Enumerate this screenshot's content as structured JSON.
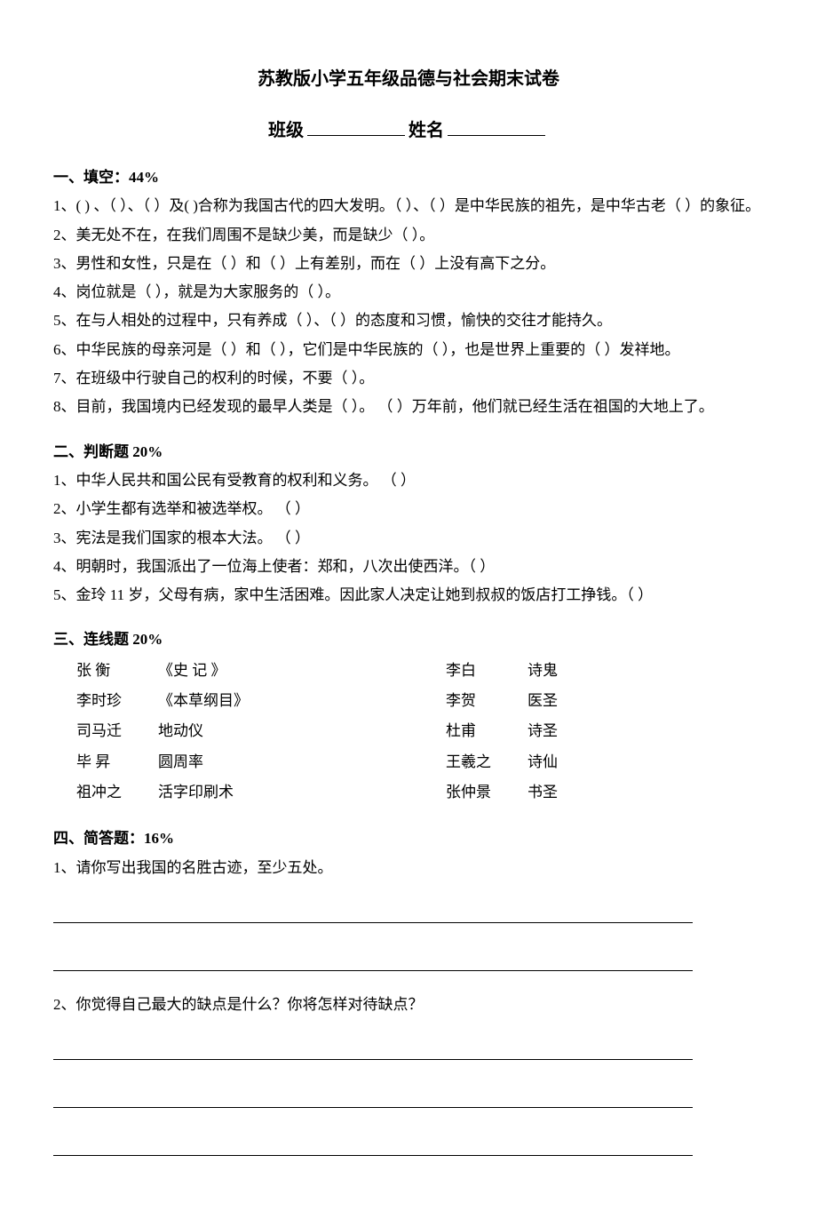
{
  "title": "苏教版小学五年级品德与社会期末试卷",
  "subtitle": {
    "class_label": "班级",
    "name_label": "姓名"
  },
  "s1": {
    "header": "一、填空：44%",
    "q1": "1、(        ) 、（        ）、（        ）及(        )合称为我国古代的四大发明。（        ）、（        ）是中华民族的祖先，是中华古老（      ）的象征。",
    "q2": "2、美无处不在，在我们周围不是缺少美，而是缺少（            ）。",
    "q3": "3、男性和女性，只是在（          ）和（          ）上有差别，而在（        ）上没有高下之分。",
    "q4": "4、岗位就是（        ），就是为大家服务的（        ）。",
    "q5": "5、在与人相处的过程中，只有养成（        ）、（        ）的态度和习惯，愉快的交往才能持久。",
    "q6": "6、中华民族的母亲河是（      ）和（      ），它们是中华民族的（                    ），也是世界上重要的（            ）发祥地。",
    "q7": "7、在班级中行驶自己的权利的时候，不要（                ）。",
    "q8": "8、目前，我国境内已经发现的最早人类是（            ）。  （        ）万年前，他们就已经生活在祖国的大地上了。"
  },
  "s2": {
    "header": "二、判断题 20%",
    "q1": "1、中华人民共和国公民有受教育的权利和义务。    （      ）",
    "q2": "2、小学生都有选举和被选举权。                      （      ）",
    "q3": "3、宪法是我们国家的根本大法。                      （      ）",
    "q4": "4、明朝时，我国派出了一位海上使者：郑和，八次出使西洋。（    ）",
    "q5": "5、金玲 11 岁，父母有病，家中生活困难。因此家人决定让她到叔叔的饭店打工挣钱。（        ）"
  },
  "s3": {
    "header": "三、连线题 20%",
    "left": [
      {
        "a": "张  衡",
        "b": "《史    记 》"
      },
      {
        "a": "李时珍",
        "b": "《本草纲目》"
      },
      {
        "a": "司马迁",
        "b": "地动仪"
      },
      {
        "a": "毕  昇",
        "b": "圆周率"
      },
      {
        "a": "祖冲之",
        "b": "活字印刷术"
      }
    ],
    "right": [
      {
        "a": "李白",
        "b": "诗鬼"
      },
      {
        "a": "李贺",
        "b": "医圣"
      },
      {
        "a": "杜甫",
        "b": "诗圣"
      },
      {
        "a": "王羲之",
        "b": "诗仙"
      },
      {
        "a": "张仲景",
        "b": "书圣"
      }
    ]
  },
  "s4": {
    "header": "四、简答题：16%",
    "q1": "1、请你写出我国的名胜古迹，至少五处。",
    "q2": "2、你觉得自己最大的缺点是什么？你将怎样对待缺点？"
  }
}
